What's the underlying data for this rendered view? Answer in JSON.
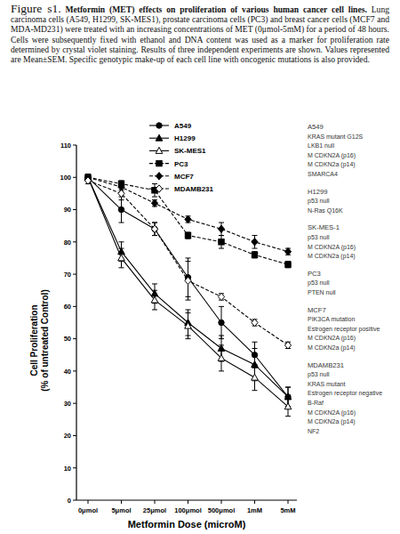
{
  "figure": {
    "label": "Figure s1.",
    "title": "Metformin (MET) effects on proliferation of various human cancer cell lines.",
    "text": "Lung carcinoma cells (A549, H1299, SK-MES1), prostate carcinoma cells (PC3) and breast cancer cells (MCF7 and MDA-MD231) were treated with an increasing concentrations of MET (0μmol-5mM) for a period of 48 hours. Cells were subsequently fixed with ethanol and DNA content was used as a marker for proliferation rate determined by crystal violet staining. Results of three independent experiments are shown. Values represented are Mean±SEM. Specific genotypic make-up of each cell line with oncogenic mutations is also provided."
  },
  "genotypes": [
    {
      "name": "A549",
      "lines": [
        "KRAS mutant G12S",
        "LKB1 null",
        "M CDKN2A (p16)",
        "M CDKN2a (p14)",
        "SMARCA4"
      ]
    },
    {
      "name": "H1299",
      "lines": [
        "p53 null",
        "N-Ras Q16K"
      ]
    },
    {
      "name": "SK-MES-1",
      "lines": [
        "p53 null",
        "M CDKN2A (p16)",
        "M CDKN2a (p14)"
      ]
    },
    {
      "name": "PC3",
      "lines": [
        "p53 null",
        "PTEN null"
      ]
    },
    {
      "name": "MCF7",
      "lines": [
        "PIK3CA mutation",
        "Estrogen receptor positive",
        "M CDKN2A (p16)",
        "M CDKN2a (p14)"
      ]
    },
    {
      "name": "MDAMB231",
      "lines": [
        "p53 null",
        "KRAS mutant",
        "Estrogen receptor negative",
        "B-Raf",
        "M CDKN2A (p16)",
        "M CDKN2a (p14)",
        "NF2"
      ]
    }
  ],
  "chart_data": {
    "type": "line",
    "x_label": "Metformin Dose (microM)",
    "y_label": [
      "Cell Proliferation",
      "(% of untreated Control)"
    ],
    "categories": [
      "0μmol",
      "5μmol",
      "25μmol",
      "100μmol",
      "500μmol",
      "1mM",
      "5mM"
    ],
    "ylim": [
      0,
      110
    ],
    "yticks": [
      0,
      10,
      20,
      30,
      40,
      50,
      60,
      70,
      80,
      90,
      100,
      110
    ],
    "legend": "top-right",
    "grid": false,
    "series": [
      {
        "name": "A549",
        "color": "#000000",
        "marker": "circle",
        "line_style": "solid",
        "values": [
          100,
          90,
          84,
          69,
          55,
          45,
          32
        ],
        "errors": [
          1,
          4,
          2,
          6,
          5,
          4,
          3
        ]
      },
      {
        "name": "H1299",
        "color": "#000000",
        "marker": "triangle",
        "line_style": "solid",
        "values": [
          100,
          77,
          64,
          55,
          47,
          42,
          32
        ],
        "errors": [
          1,
          3,
          3,
          4,
          4,
          5,
          3
        ]
      },
      {
        "name": "SK-MES1",
        "color": "#000000",
        "marker": "triangle-open",
        "line_style": "solid",
        "values": [
          100,
          75,
          62,
          54,
          44,
          38,
          29
        ],
        "errors": [
          1,
          3,
          3,
          4,
          4,
          4,
          3
        ]
      },
      {
        "name": "PC3",
        "color": "#000000",
        "marker": "square",
        "line_style": "dashed",
        "values": [
          100,
          98,
          96,
          82,
          80,
          76,
          73
        ],
        "errors": [
          1,
          1,
          2,
          1,
          2,
          1,
          1
        ]
      },
      {
        "name": "MCF7",
        "color": "#000000",
        "marker": "diamond",
        "line_style": "dashed",
        "values": [
          100,
          97,
          92,
          87,
          84,
          80,
          77
        ],
        "errors": [
          1,
          1,
          1,
          1,
          2,
          2,
          1
        ]
      },
      {
        "name": "MDAMB231",
        "color": "#000000",
        "marker": "diamond-open",
        "line_style": "dashed",
        "values": [
          99,
          95,
          84,
          68,
          63,
          55,
          48
        ],
        "errors": [
          1,
          2,
          2,
          6,
          1,
          1,
          1
        ]
      }
    ]
  }
}
